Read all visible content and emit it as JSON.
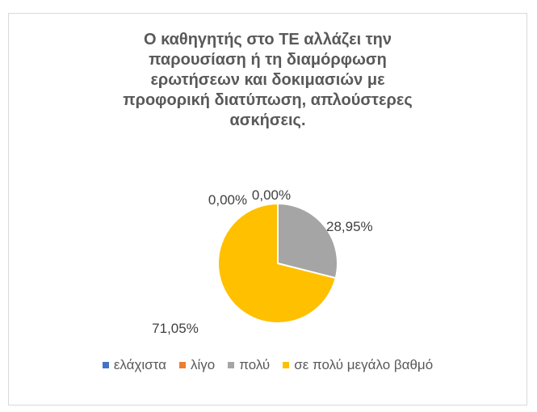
{
  "chart_data": {
    "type": "pie",
    "title": "Ο καθηγητής στο ΤΕ αλλάζει την παρουσίαση ή τη διαμόρφωση ερωτήσεων και δοκιμασιών με προφορική διατύπωση, απλούστερες ασκήσεις.",
    "title_lines": [
      "Ο καθηγητής στο ΤΕ αλλάζει την",
      "παρουσίαση ή τη διαμόρφωση",
      "ερωτήσεων και δοκιμασιών με",
      "προφορική διατύπωση, απλούστερες",
      "ασκήσεις."
    ],
    "categories": [
      "ελάχιστα",
      "λίγο",
      "πολύ",
      "σε πολύ μεγάλο βαθμό"
    ],
    "values": [
      0,
      0,
      28.95,
      71.05
    ],
    "labels": [
      "0,00%",
      "0,00%",
      "28,95%",
      "71,05%"
    ],
    "colors": [
      "#4472c4",
      "#ed7d31",
      "#a5a5a5",
      "#ffc000"
    ],
    "legend_position": "bottom"
  }
}
